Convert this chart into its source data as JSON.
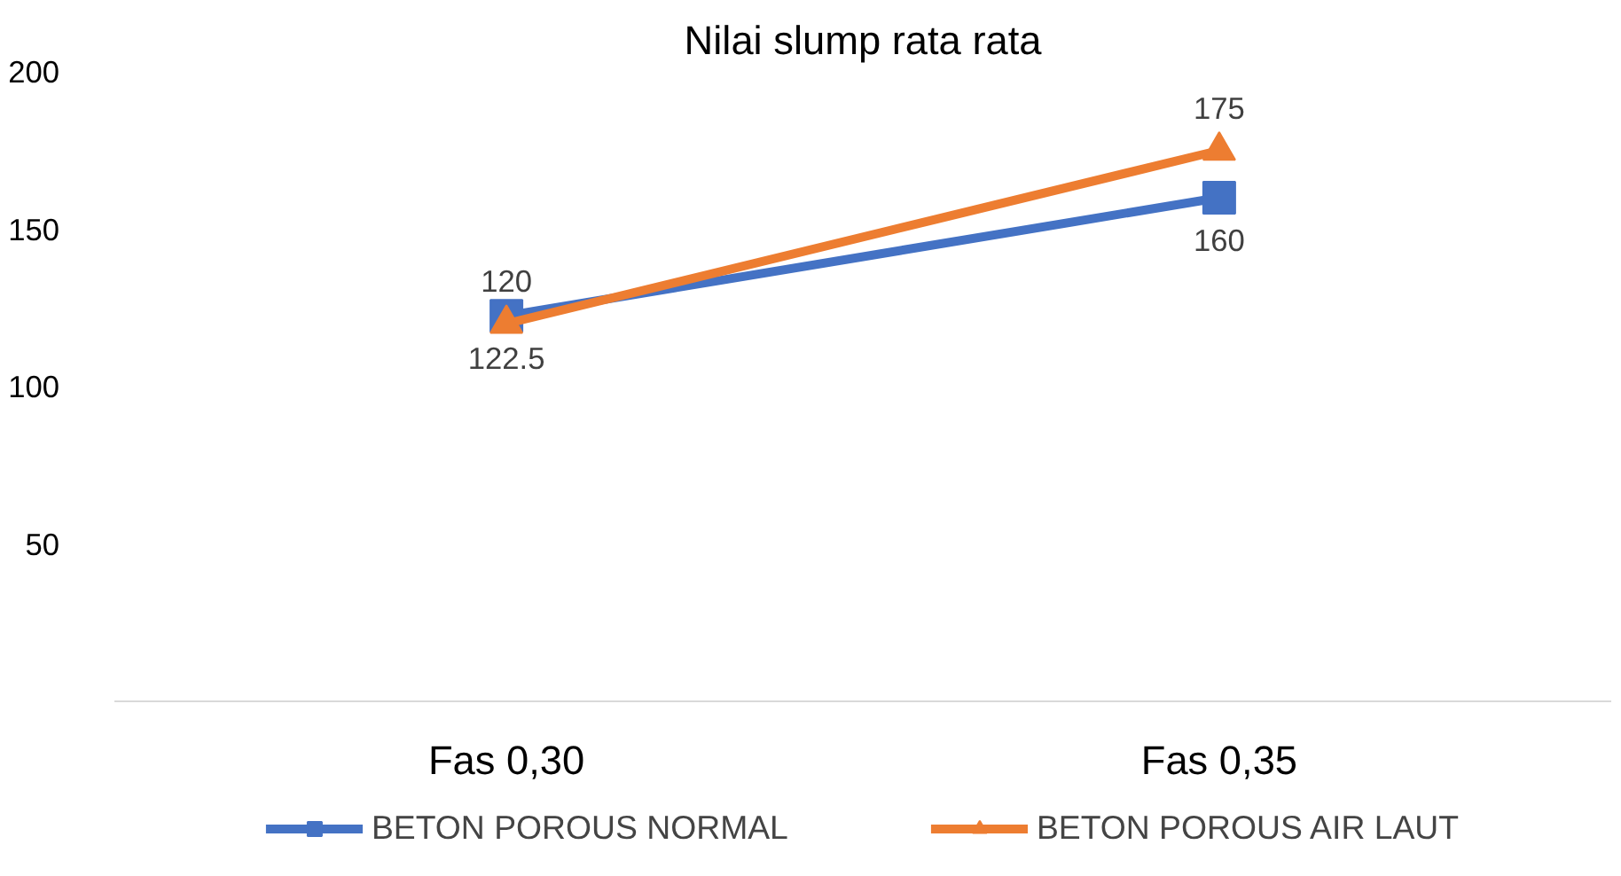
{
  "chart_data": {
    "type": "line",
    "title": "Nilai slump rata rata",
    "categories": [
      "Fas 0,30",
      "Fas 0,35"
    ],
    "series": [
      {
        "name": "BETON POROUS NORMAL",
        "color": "#4472c4",
        "values": [
          122.5,
          160
        ],
        "marker": "square"
      },
      {
        "name": "BETON POROUS AIR LAUT",
        "color": "#ed7d31",
        "values": [
          120,
          175
        ],
        "marker": "triangle"
      }
    ],
    "ylim": [
      0,
      200
    ],
    "yticks": [
      50,
      100,
      150,
      200
    ],
    "grid": false,
    "legend": "bottom",
    "data_labels": true,
    "line_style": "solid"
  }
}
